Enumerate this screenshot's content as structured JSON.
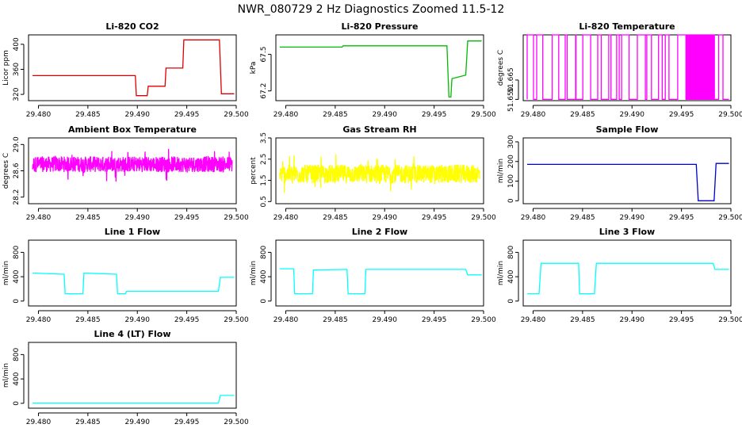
{
  "title": "NWR_080729  2 Hz Diagnostics Zoomed 11.5-12",
  "chart_data": [
    {
      "type": "line",
      "title": "Li-820 CO2",
      "ylabel": "Licor ppm",
      "color": "#dd0000",
      "xlim": [
        29.479,
        29.5
      ],
      "ylim": [
        310,
        415
      ],
      "x_ticks": [
        "29.480",
        "29.485",
        "29.490",
        "29.495",
        "29.500"
      ],
      "y_ticks": [
        "320",
        "360",
        "400"
      ],
      "x": [
        29.479,
        29.4898,
        29.4899,
        29.491,
        29.4911,
        29.4928,
        29.4929,
        29.4946,
        29.4947,
        29.4983,
        29.4985,
        29.5
      ],
      "values": [
        350,
        350,
        318,
        318,
        333,
        333,
        362,
        362,
        407,
        407,
        321,
        321
      ]
    },
    {
      "type": "line",
      "title": "Li-820 Pressure",
      "ylabel": "kPa",
      "color": "#00bb00",
      "xlim": [
        29.479,
        29.5
      ],
      "ylim": [
        67.12,
        67.66
      ],
      "x_ticks": [
        "29.480",
        "29.485",
        "29.490",
        "29.495",
        "29.500"
      ],
      "y_ticks": [
        "67.2",
        "67.5"
      ],
      "x": [
        29.479,
        29.4857,
        29.4858,
        29.4963,
        29.4965,
        29.4967,
        29.4968,
        29.4982,
        29.4984,
        29.5
      ],
      "values": [
        67.56,
        67.56,
        67.57,
        67.57,
        67.15,
        67.15,
        67.3,
        67.33,
        67.61,
        67.61
      ]
    },
    {
      "type": "line",
      "title": "Li-820 Temperature",
      "ylabel": "degrees C",
      "color": "#ff00ff",
      "xlim": [
        29.479,
        29.5
      ],
      "ylim": [
        51.649,
        51.7
      ],
      "x_ticks": [
        "29.480",
        "29.485",
        "29.490",
        "29.495",
        "29.500"
      ],
      "y_ticks": [
        "51.650",
        "51.665"
      ],
      "note": "signal toggles between 51.650 and 51.700 (quantized)",
      "x": [
        29.479,
        29.5
      ],
      "values": [
        51.65,
        51.7
      ]
    },
    {
      "type": "line",
      "title": "Ambient Box Temperature",
      "ylabel": "degrees C",
      "color": "#ff00ff",
      "xlim": [
        29.479,
        29.5
      ],
      "ylim": [
        28.1,
        29.1
      ],
      "x_ticks": [
        "29.480",
        "29.485",
        "29.490",
        "29.495",
        "29.500"
      ],
      "y_ticks": [
        "28.2",
        "28.6",
        "29.0"
      ],
      "note": "noisy signal around 28.7",
      "x": [
        29.479,
        29.5
      ],
      "values": [
        28.7,
        28.7
      ]
    },
    {
      "type": "line",
      "title": "Gas Stream RH",
      "ylabel": "percent",
      "color": "#ffff00",
      "xlim": [
        29.479,
        29.5
      ],
      "ylim": [
        0.4,
        3.5
      ],
      "x_ticks": [
        "29.480",
        "29.485",
        "29.490",
        "29.495",
        "29.500"
      ],
      "y_ticks": [
        "0.5",
        "1.5",
        "2.5",
        "3.5"
      ],
      "note": "noisy signal around 1.8",
      "x": [
        29.479,
        29.5
      ],
      "values": [
        1.8,
        1.8
      ]
    },
    {
      "type": "line",
      "title": "Sample Flow",
      "ylabel": "ml/min",
      "color": "#0000cc",
      "xlim": [
        29.479,
        29.5
      ],
      "ylim": [
        -15,
        320
      ],
      "x_ticks": [
        "29.480",
        "29.485",
        "29.490",
        "29.495",
        "29.500"
      ],
      "y_ticks": [
        "0",
        "100",
        "200",
        "300"
      ],
      "x": [
        29.479,
        29.4965,
        29.4967,
        29.4983,
        29.4985,
        29.5
      ],
      "values": [
        185,
        185,
        0,
        0,
        190,
        190
      ]
    },
    {
      "type": "line",
      "title": "Line 1 Flow",
      "ylabel": "ml/min",
      "color": "#00ffff",
      "xlim": [
        29.479,
        29.5
      ],
      "ylim": [
        -80,
        1000
      ],
      "x_ticks": [
        "29.480",
        "29.485",
        "29.490",
        "29.495",
        "29.500"
      ],
      "y_ticks": [
        "0",
        "400",
        "800"
      ],
      "x": [
        29.479,
        29.4826,
        29.4827,
        29.4845,
        29.4846,
        29.4879,
        29.488,
        29.4888,
        29.4889,
        29.4982,
        29.4984,
        29.5
      ],
      "values": [
        460,
        440,
        120,
        120,
        460,
        440,
        120,
        120,
        160,
        160,
        390,
        390
      ]
    },
    {
      "type": "line",
      "title": "Line 2 Flow",
      "ylabel": "ml/min",
      "color": "#00ffff",
      "xlim": [
        29.479,
        29.5
      ],
      "ylim": [
        -80,
        1000
      ],
      "x_ticks": [
        "29.480",
        "29.485",
        "29.490",
        "29.495",
        "29.500"
      ],
      "y_ticks": [
        "0",
        "400",
        "800"
      ],
      "x": [
        29.479,
        29.4808,
        29.4809,
        29.4827,
        29.4828,
        29.4862,
        29.4863,
        29.488,
        29.4881,
        29.4982,
        29.4984,
        29.5
      ],
      "values": [
        530,
        530,
        120,
        120,
        510,
        520,
        120,
        120,
        520,
        520,
        430,
        430
      ]
    },
    {
      "type": "line",
      "title": "Line 3 Flow",
      "ylabel": "ml/min",
      "color": "#00ffff",
      "xlim": [
        29.479,
        29.5
      ],
      "ylim": [
        -80,
        1000
      ],
      "x_ticks": [
        "29.480",
        "29.485",
        "29.490",
        "29.495",
        "29.500"
      ],
      "y_ticks": [
        "0",
        "400",
        "800"
      ],
      "x": [
        29.479,
        29.4806,
        29.4808,
        29.4846,
        29.4847,
        29.4862,
        29.4864,
        29.4982,
        29.4984,
        29.5
      ],
      "values": [
        120,
        120,
        620,
        620,
        120,
        120,
        620,
        620,
        520,
        520
      ]
    },
    {
      "type": "line",
      "title": "Line 4 (LT) Flow",
      "ylabel": "ml/min",
      "color": "#00ffff",
      "xlim": [
        29.479,
        29.5
      ],
      "ylim": [
        -80,
        1000
      ],
      "x_ticks": [
        "29.480",
        "29.485",
        "29.490",
        "29.495",
        "29.500"
      ],
      "y_ticks": [
        "0",
        "400",
        "800"
      ],
      "x": [
        29.479,
        29.4982,
        29.4984,
        29.5
      ],
      "values": [
        5,
        5,
        130,
        130
      ]
    }
  ]
}
